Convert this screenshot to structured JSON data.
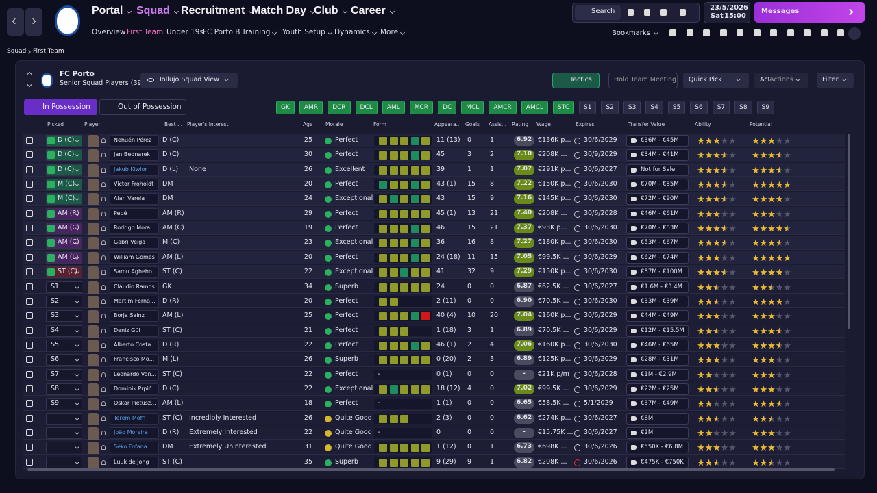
{
  "nav": {
    "menu": [
      "Portal",
      "Squad",
      "Recruitment",
      "Match Day",
      "Club",
      "Career"
    ],
    "active_menu": 1,
    "submenu": [
      "Overview",
      "First Team",
      "Under 19s",
      "FC Porto B",
      "Training",
      "Youth Setup",
      "Dynamics",
      "More"
    ],
    "active_submenu": 1,
    "search": "Search",
    "date": "23/5/2026",
    "day": "Sat",
    "time": "15:00",
    "messages": "Messages",
    "bookmarks": "Bookmarks"
  },
  "breadcrumb": [
    "Squad",
    "First Team"
  ],
  "team": {
    "name": "FC Porto",
    "subtitle": "Senior Squad Players (39)",
    "view": "Iollujo Squad View"
  },
  "buttons": {
    "tactics": "Tactics",
    "meeting": "Hold Team Meeting",
    "quick_pick": "Quick Pick",
    "actions": "Actions",
    "filter": "Filter"
  },
  "tabs": [
    "In Possession",
    "Out of Possession"
  ],
  "positions": {
    "assigned": [
      "GK",
      "AMR",
      "DCR",
      "DCL",
      "AML",
      "MCR",
      "DC",
      "MCL",
      "AMCR",
      "AMCL",
      "STC"
    ],
    "subs": [
      "S1",
      "S2",
      "S3",
      "S4",
      "S5",
      "S6",
      "S7",
      "S8",
      "S9"
    ]
  },
  "table": {
    "columns": [
      "Picked",
      "Player",
      "Best ...",
      "Player's Interest",
      "Age",
      "Morale",
      "Form",
      "Appeara...",
      "Goals",
      "Assis...",
      "Rating",
      "Wage",
      "Expires",
      "Transfer Value",
      "Ability",
      "Potential"
    ],
    "rows": [
      {
        "picked": "D (C)",
        "picked_color": "#1c5a48",
        "name": "Nehuén Pérez",
        "best": "D (C)",
        "interest": "",
        "age": "25",
        "morale": "Perfect",
        "form": [
          "#8f9a2a",
          "#8f9a2a",
          "#8f9a2a",
          "#1e8c5e",
          "#8f9a2a"
        ],
        "apps": "11 (13)",
        "goals": "0",
        "assists": "1",
        "rating": "6.92",
        "wage": "€136K p...",
        "expires": "30/6/2029",
        "value": "€36M - €45M",
        "ability": 3,
        "potential": 3
      },
      {
        "picked": "D (C)",
        "picked_color": "#1c5a48",
        "name": "Jan Bednarek",
        "best": "D (C)",
        "interest": "",
        "age": "30",
        "morale": "Perfect",
        "form": [
          "#8f9a2a",
          "#8f9a2a",
          "#8f9a2a",
          "#1e8c5e",
          "#8f9a2a"
        ],
        "apps": "45",
        "goals": "3",
        "assists": "2",
        "rating": "7.10",
        "wage": "€208K ...",
        "expires": "30/9/2029",
        "value": "€34M - €41M",
        "ability": 3.5,
        "potential": 3.5
      },
      {
        "picked": "D (C)",
        "picked_color": "#1c5a48",
        "name": "Jakub Kiwior",
        "name_color": "#5aa0e8",
        "best": "D (L)",
        "interest": "None",
        "age": "26",
        "morale": "Excellent",
        "form": [
          "#8f9a2a",
          "#8f9a2a",
          "#8f9a2a",
          "#8f9a2a",
          "#8f9a2a"
        ],
        "apps": "39",
        "goals": "1",
        "assists": "1",
        "rating": "7.07",
        "wage": "€291K p...",
        "expires": "30/6/2027",
        "value": "Not for Sale",
        "ability": 3.5,
        "potential": 3.5
      },
      {
        "picked": "M (C)",
        "picked_color": "#1c5a48",
        "name": "Victor Froholdt",
        "best": "DM",
        "interest": "",
        "age": "20",
        "morale": "Perfect",
        "form": [
          "#1e8c5e",
          "#8f9a2a",
          "#8f9a2a",
          "#1e8c5e",
          "#8f9a2a"
        ],
        "apps": "43 (1)",
        "goals": "15",
        "assists": "8",
        "rating": "7.22",
        "wage": "€150K p...",
        "expires": "30/6/2030",
        "value": "€70M - €85M",
        "ability": 3.5,
        "potential": 5
      },
      {
        "picked": "M (C)",
        "picked_color": "#1c5a48",
        "name": "Alan Varela",
        "best": "DM",
        "interest": "",
        "age": "24",
        "morale": "Exceptional",
        "form": [
          "#8f9a2a",
          "#1e8c5e",
          "#8f9a2a",
          "#1e8c5e",
          "#8f9a2a"
        ],
        "apps": "43",
        "goals": "15",
        "assists": "9",
        "rating": "7.16",
        "wage": "€145K p...",
        "expires": "30/6/2030",
        "value": "€72M - €90M",
        "ability": 3.5,
        "potential": 4
      },
      {
        "picked": "AM (R)",
        "picked_color": "#4a2460",
        "name": "Pepê",
        "best": "AM (R)",
        "interest": "",
        "age": "29",
        "morale": "Perfect",
        "form": [
          "#8f9a2a",
          "#8f9a2a",
          "#8f9a2a",
          "#8f9a2a",
          "#8f9a2a"
        ],
        "apps": "45 (1)",
        "goals": "13",
        "assists": "21",
        "rating": "7.40",
        "wage": "€208K ...",
        "expires": "30/6/2028",
        "value": "€46M - €61M",
        "ability": 3,
        "potential": 3
      },
      {
        "picked": "AM (C)",
        "picked_color": "#4a2460",
        "name": "Rodrigo Mora",
        "best": "AM (C)",
        "interest": "",
        "age": "19",
        "morale": "Perfect",
        "form": [
          "#8f9a2a",
          "#8f9a2a",
          "#8f9a2a",
          "#1e8c5e",
          "#8f9a2a"
        ],
        "apps": "46",
        "goals": "15",
        "assists": "21",
        "rating": "7.37",
        "wage": "€93K p...",
        "expires": "30/6/2030",
        "value": "€70M - €83M",
        "ability": 3.5,
        "potential": 4.5
      },
      {
        "picked": "AM (C)",
        "picked_color": "#4a2460",
        "name": "Gabri Veiga",
        "best": "M (C)",
        "interest": "",
        "age": "23",
        "morale": "Exceptional",
        "form": [
          "#8f9a2a",
          "#8f9a2a",
          "#8f9a2a",
          "#1e8c5e",
          "#8f9a2a"
        ],
        "apps": "36",
        "goals": "16",
        "assists": "8",
        "rating": "7.27",
        "wage": "€180K p...",
        "expires": "30/6/2030",
        "value": "€53M - €67M",
        "ability": 3.5,
        "potential": 3.5
      },
      {
        "picked": "AM (L)",
        "picked_color": "#4a2460",
        "name": "William Gomes",
        "best": "AM (L)",
        "interest": "",
        "age": "20",
        "morale": "Perfect",
        "form": [
          "#8f9a2a",
          "#8f9a2a",
          "#8f9a2a",
          "#1e8c5e",
          "#8f9a2a"
        ],
        "apps": "24 (18)",
        "goals": "11",
        "assists": "15",
        "rating": "7.05",
        "wage": "€99.5K ...",
        "expires": "30/6/2029",
        "value": "€62M - €74M",
        "ability": 3,
        "potential": 5
      },
      {
        "picked": "ST (C)",
        "picked_color": "#5a2030",
        "name": "Samu Agheho...",
        "best": "ST (C)",
        "interest": "",
        "age": "22",
        "morale": "Exceptional",
        "form": [
          "#8f9a2a",
          "#8f9a2a",
          "#1e8c5e",
          "#8f9a2a",
          "#8f9a2a"
        ],
        "apps": "41",
        "goals": "32",
        "assists": "9",
        "rating": "7.29",
        "wage": "€150K p...",
        "expires": "30/6/2030",
        "value": "€87M - €100M",
        "ability": 3.5,
        "potential": 4
      },
      {
        "picked": "S1",
        "name": "Cláudio Ramos",
        "best": "GK",
        "interest": "",
        "age": "34",
        "morale": "Superb",
        "form": [
          "#8f9a2a",
          "#8f9a2a",
          "#8f9a2a",
          "#8f9a2a",
          "#8f9a2a"
        ],
        "apps": "24",
        "goals": "0",
        "assists": "0",
        "rating": "6.87",
        "wage": "€62.5K ...",
        "expires": "30/6/2027",
        "value": "€1.6M - €3.4M",
        "ability": 2.5,
        "potential": 2.5
      },
      {
        "picked": "S2",
        "name": "Martim Ferna...",
        "best": "D (R)",
        "interest": "",
        "age": "20",
        "morale": "Perfect",
        "form": [
          "#8f9a2a",
          "#8f9a2a"
        ],
        "apps": "2 (11)",
        "goals": "0",
        "assists": "0",
        "rating": "6.90",
        "wage": "€70.5K ...",
        "expires": "30/6/2030",
        "value": "€33M - €39M",
        "ability": 2.5,
        "potential": 4
      },
      {
        "picked": "S3",
        "name": "Borja Sainz",
        "best": "AM (L)",
        "interest": "",
        "age": "25",
        "morale": "Perfect",
        "form": [
          "#8f9a2a",
          "#8f9a2a",
          "#8f9a2a",
          "#1e8c5e",
          "#d01818"
        ],
        "apps": "40 (4)",
        "goals": "10",
        "assists": "20",
        "rating": "7.04",
        "wage": "€160K p...",
        "expires": "30/6/2029",
        "value": "€44M - €49M",
        "ability": 3,
        "potential": 3
      },
      {
        "picked": "S4",
        "name": "Deniz Gül",
        "best": "ST (C)",
        "interest": "",
        "age": "21",
        "morale": "Perfect",
        "form": [
          "#8f9a2a",
          "#8f9a2a",
          "#8f9a2a"
        ],
        "apps": "1 (18)",
        "goals": "3",
        "assists": "1",
        "rating": "6.89",
        "wage": "€70.5K ...",
        "expires": "30/6/2029",
        "value": "€12M - €15.5M",
        "ability": 2.5,
        "potential": 3.5
      },
      {
        "picked": "S5",
        "name": "Alberto Costa",
        "best": "D (R)",
        "interest": "",
        "age": "22",
        "morale": "Perfect",
        "form": [
          "#8f9a2a",
          "#8f9a2a",
          "#8f9a2a",
          "#1e8c5e",
          "#8f9a2a"
        ],
        "apps": "46 (1)",
        "goals": "2",
        "assists": "4",
        "rating": "7.06",
        "wage": "€160K p...",
        "expires": "30/6/2030",
        "value": "€46M - €65M",
        "ability": 3,
        "potential": 3.5
      },
      {
        "picked": "S6",
        "name": "Francisco Mo...",
        "best": "M (L)",
        "interest": "",
        "age": "26",
        "morale": "Superb",
        "form": [
          "#8f9a2a",
          "#8f9a2a",
          "#8f9a2a",
          "#8f9a2a",
          "#8f9a2a"
        ],
        "apps": "0 (20)",
        "goals": "2",
        "assists": "3",
        "rating": "6.89",
        "wage": "€125K p...",
        "expires": "30/6/2029",
        "value": "€28M - €31M",
        "ability": 3,
        "potential": 3
      },
      {
        "picked": "S7",
        "name": "Leonardo Von...",
        "best": "ST (C)",
        "interest": "",
        "age": "22",
        "morale": "Perfect",
        "form_text": "-",
        "apps": "0 (1)",
        "goals": "0",
        "assists": "0",
        "rating": "-",
        "wage": "€21K p/m",
        "expires": "30/6/2028",
        "value": "€1M - €2.9M",
        "ability": 2,
        "potential": 3
      },
      {
        "picked": "S8",
        "name": "Dominik Prpić",
        "best": "D (C)",
        "interest": "",
        "age": "22",
        "morale": "Exceptional",
        "form": [
          "#8f9a2a",
          "#1e8c5e",
          "#8f9a2a",
          "#8f9a2a",
          "#8f9a2a"
        ],
        "apps": "18 (12)",
        "goals": "4",
        "assists": "0",
        "rating": "7.02",
        "wage": "€99.5K ...",
        "expires": "30/6/2029",
        "value": "€22M - €25M",
        "ability": 2.5,
        "potential": 3
      },
      {
        "picked": "S9",
        "name": "Oskar Pietusz...",
        "best": "AM (L)",
        "interest": "",
        "age": "18",
        "morale": "Perfect",
        "form_text": "-",
        "apps": "1 (1)",
        "goals": "0",
        "assists": "0",
        "rating": "6.65",
        "wage": "€58.5K ...",
        "expires": "5/1/2029",
        "value": "€37M - €49M",
        "ability": 2,
        "potential": 3.5
      },
      {
        "picked": "",
        "name": "Terem Moffi",
        "name_color": "#5aa0e8",
        "best": "ST (C)",
        "interest": "Incredibly Interested",
        "age": "26",
        "morale": "Quite Good",
        "morale_color": "#d6b72a",
        "form": [
          "#8f9a2a",
          "#8f9a2a",
          "#8f9a2a"
        ],
        "apps": "2 (3)",
        "goals": "0",
        "assists": "0",
        "rating": "6.62",
        "wage": "€274K p...",
        "expires": "30/6/2027",
        "value": "€8M",
        "ability": 2.5,
        "potential": 2.5
      },
      {
        "picked": "",
        "name": "João Moreira",
        "name_color": "#5aa0e8",
        "best": "D (R)",
        "interest": "Extremely Interested",
        "age": "22",
        "morale": "Quite Good",
        "morale_color": "#d6b72a",
        "form_text": "-",
        "apps": "0",
        "goals": "0",
        "assists": "0",
        "rating": "-",
        "wage": "€15.75K ...",
        "expires": "30/6/2027",
        "value": "€2M",
        "ability": 2,
        "potential": 3
      },
      {
        "picked": "",
        "name": "Séko Fofana",
        "name_color": "#5aa0e8",
        "best": "DM",
        "interest": "Extremely Uninterested",
        "age": "31",
        "morale": "Quite Good",
        "morale_color": "#d6b72a",
        "form": [
          "#8f9a2a",
          "#8f9a2a",
          "#8f9a2a",
          "#8f9a2a",
          "#8f9a2a"
        ],
        "apps": "1 (12)",
        "goals": "0",
        "assists": "1",
        "rating": "6.73",
        "wage": "€698K ...",
        "expires": "30/6/2026",
        "value": "€550K - €6.8M",
        "ability": 3,
        "potential": 3
      },
      {
        "picked": "",
        "name": "Luuk de Jong",
        "best": "ST (C)",
        "interest": "",
        "age": "35",
        "morale": "Superb",
        "form": [
          "#8f9a2a",
          "#8f9a2a",
          "#8f9a2a",
          "#8f9a2a",
          "#8f9a2a"
        ],
        "apps": "9 (29)",
        "goals": "9",
        "assists": "1",
        "rating": "6.82",
        "wage": "€208K ...",
        "expires": "30/6/2026",
        "expires_color": "#e03030",
        "value": "€475K - €750K",
        "ability": 2.5,
        "potential": 2.5
      }
    ]
  }
}
